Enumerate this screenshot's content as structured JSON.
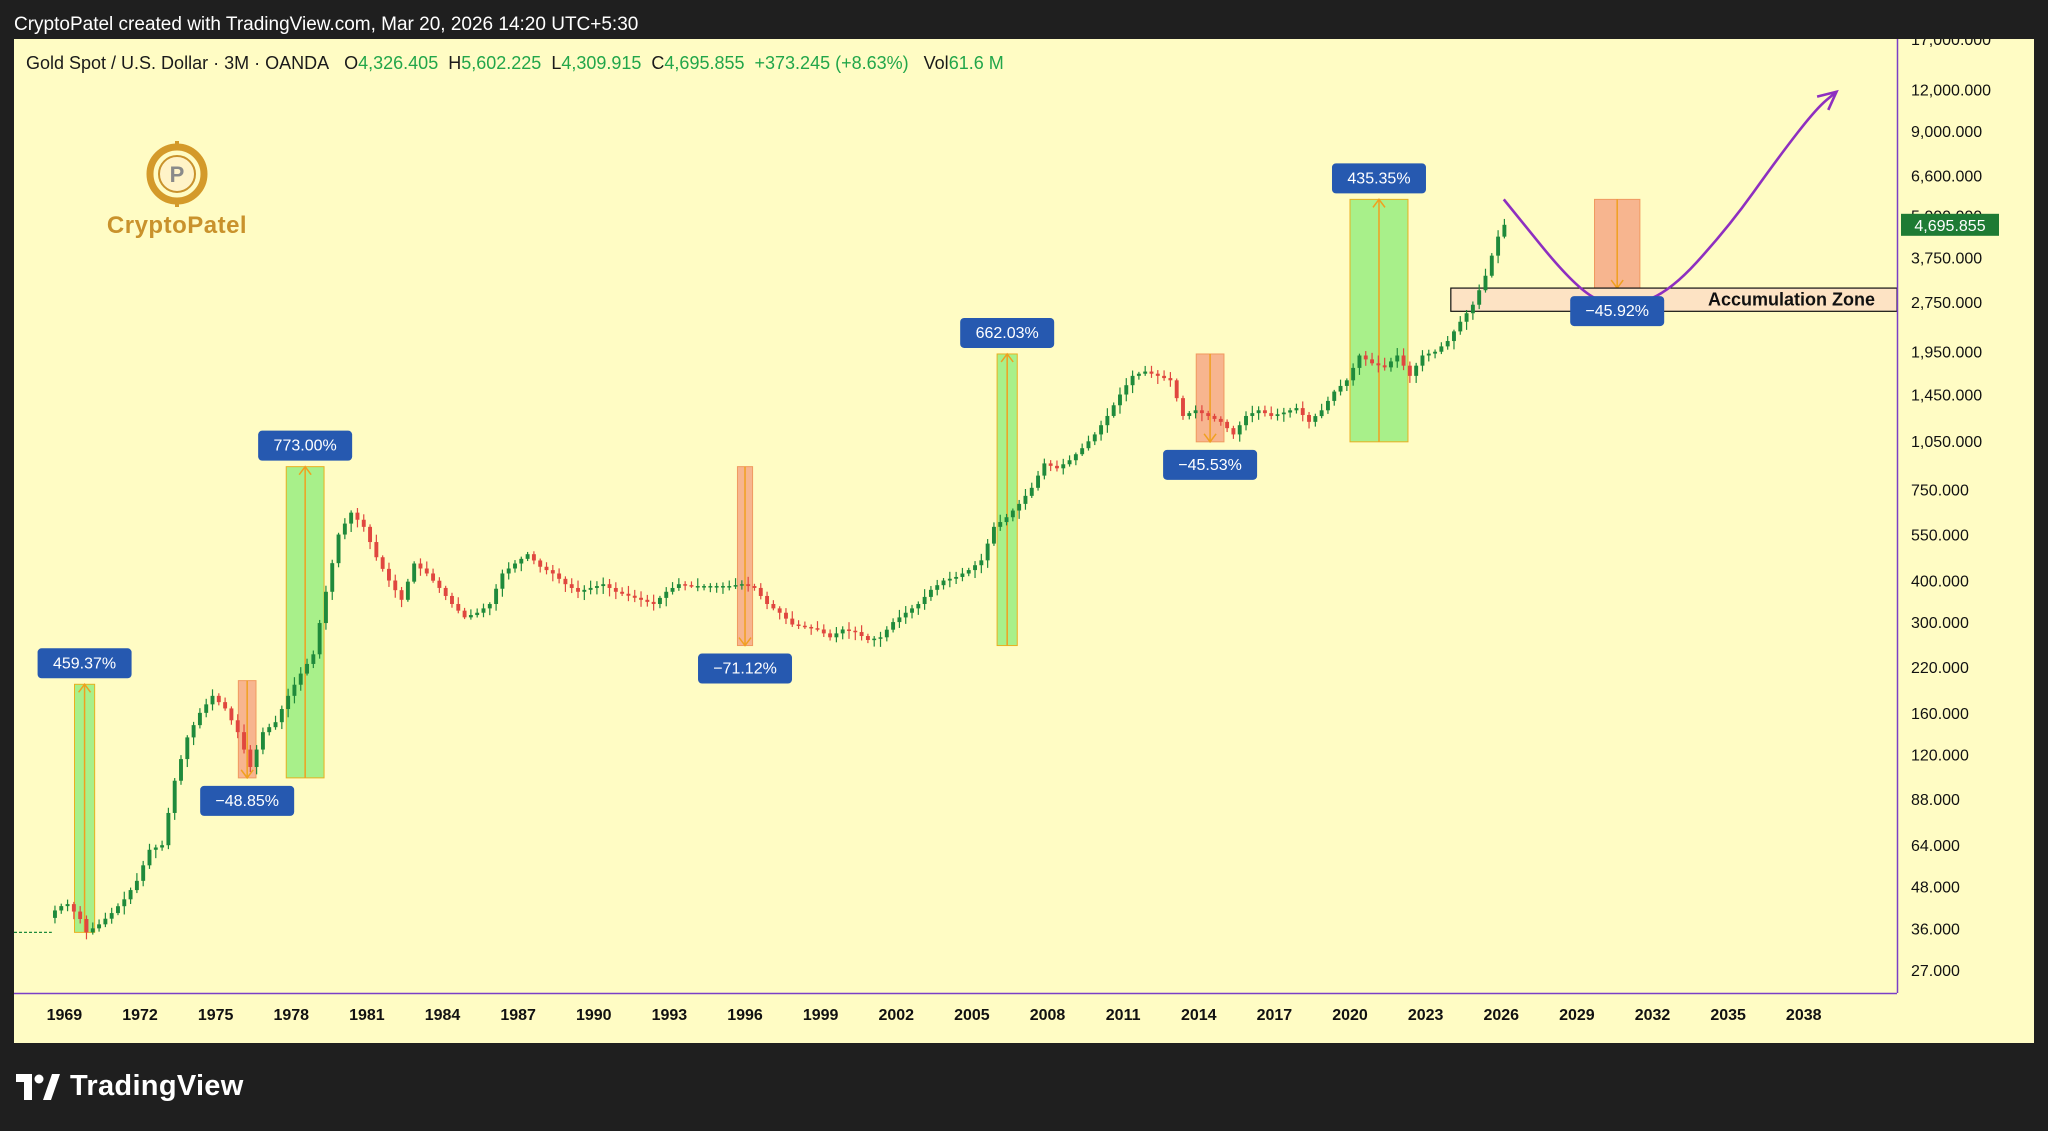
{
  "header": {
    "attribution": "CryptoPatel created with TradingView.com, Mar 20, 2026 14:20 UTC+5:30"
  },
  "legend": {
    "symbol": "Gold Spot / U.S. Dollar · 3M · OANDA",
    "o_label": "O",
    "o_value": "4,326.405",
    "h_label": "H",
    "h_value": "5,602.225",
    "l_label": "L",
    "l_value": "4,309.915",
    "c_label": "C",
    "c_value": "4,695.855",
    "change": "+373.245 (+8.63%)",
    "vol_label": "Vol",
    "vol_value": "61.6 M"
  },
  "logo": {
    "name": "CryptoPatel"
  },
  "footer": {
    "brand": "TradingView"
  },
  "colors": {
    "background": "#fffcc4",
    "up": "#1f8a3b",
    "down": "#e0473f",
    "rise_box": "#a8f08a",
    "drop_box": "#f7b58f",
    "label_bg": "#2659b0",
    "arrow": "#f0a020",
    "projection": "#8e2fc0",
    "price_tag": "#1e7b34"
  },
  "chart_data": {
    "type": "candlestick",
    "title": "Gold Spot / U.S. Dollar · 3M · OANDA",
    "xlabel": "",
    "ylabel": "",
    "y_scale": "log",
    "ylim": [
      23,
      17000
    ],
    "xlim": [
      1967,
      2041.7
    ],
    "x_ticks": [
      "1969",
      "1972",
      "1975",
      "1978",
      "1981",
      "1984",
      "1987",
      "1990",
      "1993",
      "1996",
      "1999",
      "2002",
      "2005",
      "2008",
      "2011",
      "2014",
      "2017",
      "2020",
      "2023",
      "2026",
      "2029",
      "2032",
      "2035",
      "2038"
    ],
    "y_ticks": [
      {
        "value": 17000,
        "label": "17,000.000"
      },
      {
        "value": 12000,
        "label": "12,000.000"
      },
      {
        "value": 9000,
        "label": "9,000.000"
      },
      {
        "value": 6600,
        "label": "6,600.000"
      },
      {
        "value": 5000,
        "label": "5,000.000"
      },
      {
        "value": 3750,
        "label": "3,750.000"
      },
      {
        "value": 2750,
        "label": "2,750.000"
      },
      {
        "value": 1950,
        "label": "1,950.000"
      },
      {
        "value": 1450,
        "label": "1,450.000"
      },
      {
        "value": 1050,
        "label": "1,050.000"
      },
      {
        "value": 750,
        "label": "750.000"
      },
      {
        "value": 550,
        "label": "550.000"
      },
      {
        "value": 400,
        "label": "400.000"
      },
      {
        "value": 300,
        "label": "300.000"
      },
      {
        "value": 220,
        "label": "220.000"
      },
      {
        "value": 160,
        "label": "160.000"
      },
      {
        "value": 120,
        "label": "120.000"
      },
      {
        "value": 88,
        "label": "88.000"
      },
      {
        "value": 64,
        "label": "64.000"
      },
      {
        "value": 48,
        "label": "48.000"
      },
      {
        "value": 36,
        "label": "36.000"
      },
      {
        "value": 27,
        "label": "27.000"
      }
    ],
    "last_price": {
      "value": 4695.855,
      "label": "4,695.855"
    },
    "price_path": [
      [
        1967.0,
        35
      ],
      [
        1968.2,
        35
      ],
      [
        1968.6,
        40
      ],
      [
        1969.2,
        43
      ],
      [
        1969.8,
        38
      ],
      [
        1970.0,
        35
      ],
      [
        1970.5,
        37
      ],
      [
        1971.0,
        40
      ],
      [
        1971.5,
        44
      ],
      [
        1972.0,
        50
      ],
      [
        1972.5,
        62
      ],
      [
        1973.0,
        64
      ],
      [
        1973.5,
        100
      ],
      [
        1974.0,
        135
      ],
      [
        1974.5,
        160
      ],
      [
        1975.0,
        180
      ],
      [
        1975.5,
        165
      ],
      [
        1976.0,
        140
      ],
      [
        1976.5,
        110
      ],
      [
        1977.0,
        140
      ],
      [
        1977.5,
        150
      ],
      [
        1978.0,
        180
      ],
      [
        1978.5,
        210
      ],
      [
        1979.0,
        240
      ],
      [
        1979.5,
        370
      ],
      [
        1980.0,
        550
      ],
      [
        1980.5,
        640
      ],
      [
        1981.0,
        580
      ],
      [
        1981.5,
        470
      ],
      [
        1982.0,
        400
      ],
      [
        1982.5,
        350
      ],
      [
        1983.0,
        450
      ],
      [
        1983.5,
        420
      ],
      [
        1984.0,
        380
      ],
      [
        1984.5,
        340
      ],
      [
        1985.0,
        310
      ],
      [
        1985.5,
        320
      ],
      [
        1986.0,
        340
      ],
      [
        1986.5,
        420
      ],
      [
        1987.0,
        450
      ],
      [
        1987.5,
        480
      ],
      [
        1988.0,
        440
      ],
      [
        1988.5,
        420
      ],
      [
        1989.0,
        390
      ],
      [
        1989.5,
        370
      ],
      [
        1990.0,
        380
      ],
      [
        1990.5,
        390
      ],
      [
        1991.0,
        370
      ],
      [
        1991.5,
        360
      ],
      [
        1992.0,
        350
      ],
      [
        1992.5,
        340
      ],
      [
        1993.0,
        370
      ],
      [
        1993.5,
        390
      ],
      [
        1994.0,
        385
      ],
      [
        1994.5,
        385
      ],
      [
        1995.0,
        385
      ],
      [
        1995.5,
        385
      ],
      [
        1996.0,
        390
      ],
      [
        1996.5,
        380
      ],
      [
        1997.0,
        340
      ],
      [
        1997.5,
        320
      ],
      [
        1998.0,
        295
      ],
      [
        1998.5,
        290
      ],
      [
        1999.0,
        285
      ],
      [
        1999.5,
        270
      ],
      [
        2000.0,
        285
      ],
      [
        2000.5,
        280
      ],
      [
        2001.0,
        265
      ],
      [
        2001.5,
        270
      ],
      [
        2002.0,
        300
      ],
      [
        2002.5,
        320
      ],
      [
        2003.0,
        340
      ],
      [
        2003.5,
        375
      ],
      [
        2004.0,
        400
      ],
      [
        2004.5,
        410
      ],
      [
        2005.0,
        430
      ],
      [
        2005.5,
        460
      ],
      [
        2006.0,
        580
      ],
      [
        2006.5,
        620
      ],
      [
        2007.0,
        680
      ],
      [
        2007.5,
        760
      ],
      [
        2008.0,
        900
      ],
      [
        2008.5,
        870
      ],
      [
        2009.0,
        920
      ],
      [
        2009.5,
        1000
      ],
      [
        2010.0,
        1100
      ],
      [
        2010.5,
        1250
      ],
      [
        2011.0,
        1450
      ],
      [
        2011.5,
        1650
      ],
      [
        2012.0,
        1700
      ],
      [
        2012.5,
        1650
      ],
      [
        2013.0,
        1600
      ],
      [
        2013.5,
        1250
      ],
      [
        2014.0,
        1300
      ],
      [
        2014.5,
        1250
      ],
      [
        2015.0,
        1200
      ],
      [
        2015.5,
        1100
      ],
      [
        2016.0,
        1250
      ],
      [
        2016.5,
        1300
      ],
      [
        2017.0,
        1250
      ],
      [
        2017.5,
        1280
      ],
      [
        2018.0,
        1320
      ],
      [
        2018.5,
        1200
      ],
      [
        2019.0,
        1300
      ],
      [
        2019.5,
        1480
      ],
      [
        2020.0,
        1600
      ],
      [
        2020.5,
        1900
      ],
      [
        2021.0,
        1800
      ],
      [
        2021.5,
        1750
      ],
      [
        2022.0,
        1900
      ],
      [
        2022.5,
        1650
      ],
      [
        2023.0,
        1900
      ],
      [
        2023.5,
        1950
      ],
      [
        2024.0,
        2100
      ],
      [
        2024.5,
        2400
      ],
      [
        2025.0,
        2700
      ],
      [
        2025.5,
        3300
      ],
      [
        2025.8,
        3900
      ],
      [
        2026.0,
        4326.405
      ],
      [
        2026.15,
        4695.855
      ]
    ],
    "annotations": [
      {
        "label": "459.37%",
        "kind": "rise",
        "x0": 1969.4,
        "x1": 1970.2,
        "y0": 35,
        "y1": 195
      },
      {
        "label": "−48.85%",
        "kind": "drop",
        "x0": 1975.9,
        "x1": 1976.6,
        "y0": 200,
        "y1": 102
      },
      {
        "label": "773.00%",
        "kind": "rise",
        "x0": 1977.8,
        "x1": 1979.3,
        "y0": 102,
        "y1": 880
      },
      {
        "label": "−71.12%",
        "kind": "drop",
        "x0": 1995.7,
        "x1": 1996.3,
        "y0": 880,
        "y1": 255
      },
      {
        "label": "662.03%",
        "kind": "rise",
        "x0": 2006.0,
        "x1": 2006.8,
        "y0": 255,
        "y1": 1920
      },
      {
        "label": "−45.53%",
        "kind": "drop",
        "x0": 2013.9,
        "x1": 2015.0,
        "y0": 1920,
        "y1": 1045
      },
      {
        "label": "435.35%",
        "kind": "rise",
        "x0": 2020.0,
        "x1": 2022.3,
        "y0": 1045,
        "y1": 5600
      },
      {
        "label": "−45.92%",
        "kind": "drop",
        "x0": 2029.7,
        "x1": 2031.5,
        "y0": 5600,
        "y1": 3030
      }
    ],
    "zone": {
      "label": "Accumulation Zone",
      "x0": 2024.0,
      "x1": 2041.7,
      "y0": 2580,
      "y1": 3030
    },
    "projection": [
      [
        2026.1,
        5600
      ],
      [
        2029.0,
        3000
      ],
      [
        2030.5,
        2650
      ],
      [
        2032.5,
        2850
      ],
      [
        2035.0,
        4600
      ],
      [
        2037.0,
        7500
      ],
      [
        2038.5,
        10500
      ],
      [
        2039.3,
        11800
      ]
    ],
    "grid": false,
    "legend_position": "top-left"
  }
}
